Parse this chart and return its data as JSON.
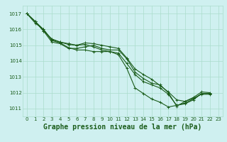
{
  "title": "Graphe pression niveau de la mer (hPa)",
  "background_color": "#cff0f0",
  "grid_color": "#aaddcc",
  "line_color": "#1a5c1a",
  "xlim": [
    -0.5,
    23.5
  ],
  "ylim": [
    1010.5,
    1017.5
  ],
  "yticks": [
    1011,
    1012,
    1013,
    1014,
    1015,
    1016,
    1017
  ],
  "xticks": [
    0,
    1,
    2,
    3,
    4,
    5,
    6,
    7,
    8,
    9,
    10,
    11,
    12,
    13,
    14,
    15,
    16,
    17,
    18,
    19,
    20,
    21,
    22,
    23
  ],
  "series": [
    {
      "x": [
        0,
        1,
        2,
        3,
        4,
        5,
        6,
        7,
        8,
        9,
        10,
        11,
        12,
        13,
        14,
        15,
        16,
        17,
        18,
        19,
        20,
        21,
        22
      ],
      "y": [
        1017.0,
        1016.5,
        1015.9,
        1015.2,
        1015.1,
        1014.8,
        1014.8,
        1014.9,
        1015.0,
        1014.8,
        1014.7,
        1014.7,
        1014.15,
        1013.3,
        1012.9,
        1012.6,
        1012.5,
        1012.0,
        1011.15,
        1011.45,
        1011.65,
        1011.9,
        1011.9
      ]
    },
    {
      "x": [
        0,
        1,
        2,
        3,
        4,
        5,
        6,
        7,
        8,
        9,
        10,
        11,
        12,
        13,
        14,
        15,
        16,
        17,
        18,
        19,
        20,
        21,
        22
      ],
      "y": [
        1017.0,
        1016.4,
        1016.0,
        1015.3,
        1015.15,
        1014.85,
        1014.7,
        1014.7,
        1014.6,
        1014.6,
        1014.6,
        1014.5,
        1013.85,
        1013.15,
        1012.7,
        1012.5,
        1012.3,
        1011.9,
        1011.2,
        1011.3,
        1011.55,
        1011.95,
        1011.95
      ]
    },
    {
      "x": [
        0,
        1,
        2,
        3,
        4,
        5,
        6,
        7,
        8,
        9,
        10,
        11,
        12,
        13,
        14,
        15,
        16,
        17,
        18,
        19,
        20,
        21,
        22
      ],
      "y": [
        1017.0,
        1016.5,
        1015.9,
        1015.4,
        1015.2,
        1015.05,
        1015.0,
        1015.15,
        1015.1,
        1015.0,
        1014.9,
        1014.8,
        1014.2,
        1013.5,
        1013.15,
        1012.85,
        1012.45,
        1012.05,
        1011.55,
        1011.45,
        1011.7,
        1012.05,
        1012.0
      ]
    },
    {
      "x": [
        0,
        1,
        2,
        3,
        4,
        5,
        6,
        7,
        8,
        9,
        10,
        11,
        12,
        13,
        14,
        15,
        16,
        17,
        18,
        19,
        20,
        21,
        22
      ],
      "y": [
        1017.0,
        1016.5,
        1016.0,
        1015.35,
        1015.2,
        1015.1,
        1015.0,
        1015.05,
        1014.9,
        1014.7,
        1014.6,
        1014.4,
        1013.55,
        1012.3,
        1011.95,
        1011.6,
        1011.4,
        1011.1,
        1011.2,
        1011.35,
        1011.6,
        1011.95,
        1011.95
      ]
    }
  ],
  "marker": "+",
  "marker_size": 3,
  "line_width": 0.8,
  "title_fontsize": 7,
  "tick_fontsize": 5
}
